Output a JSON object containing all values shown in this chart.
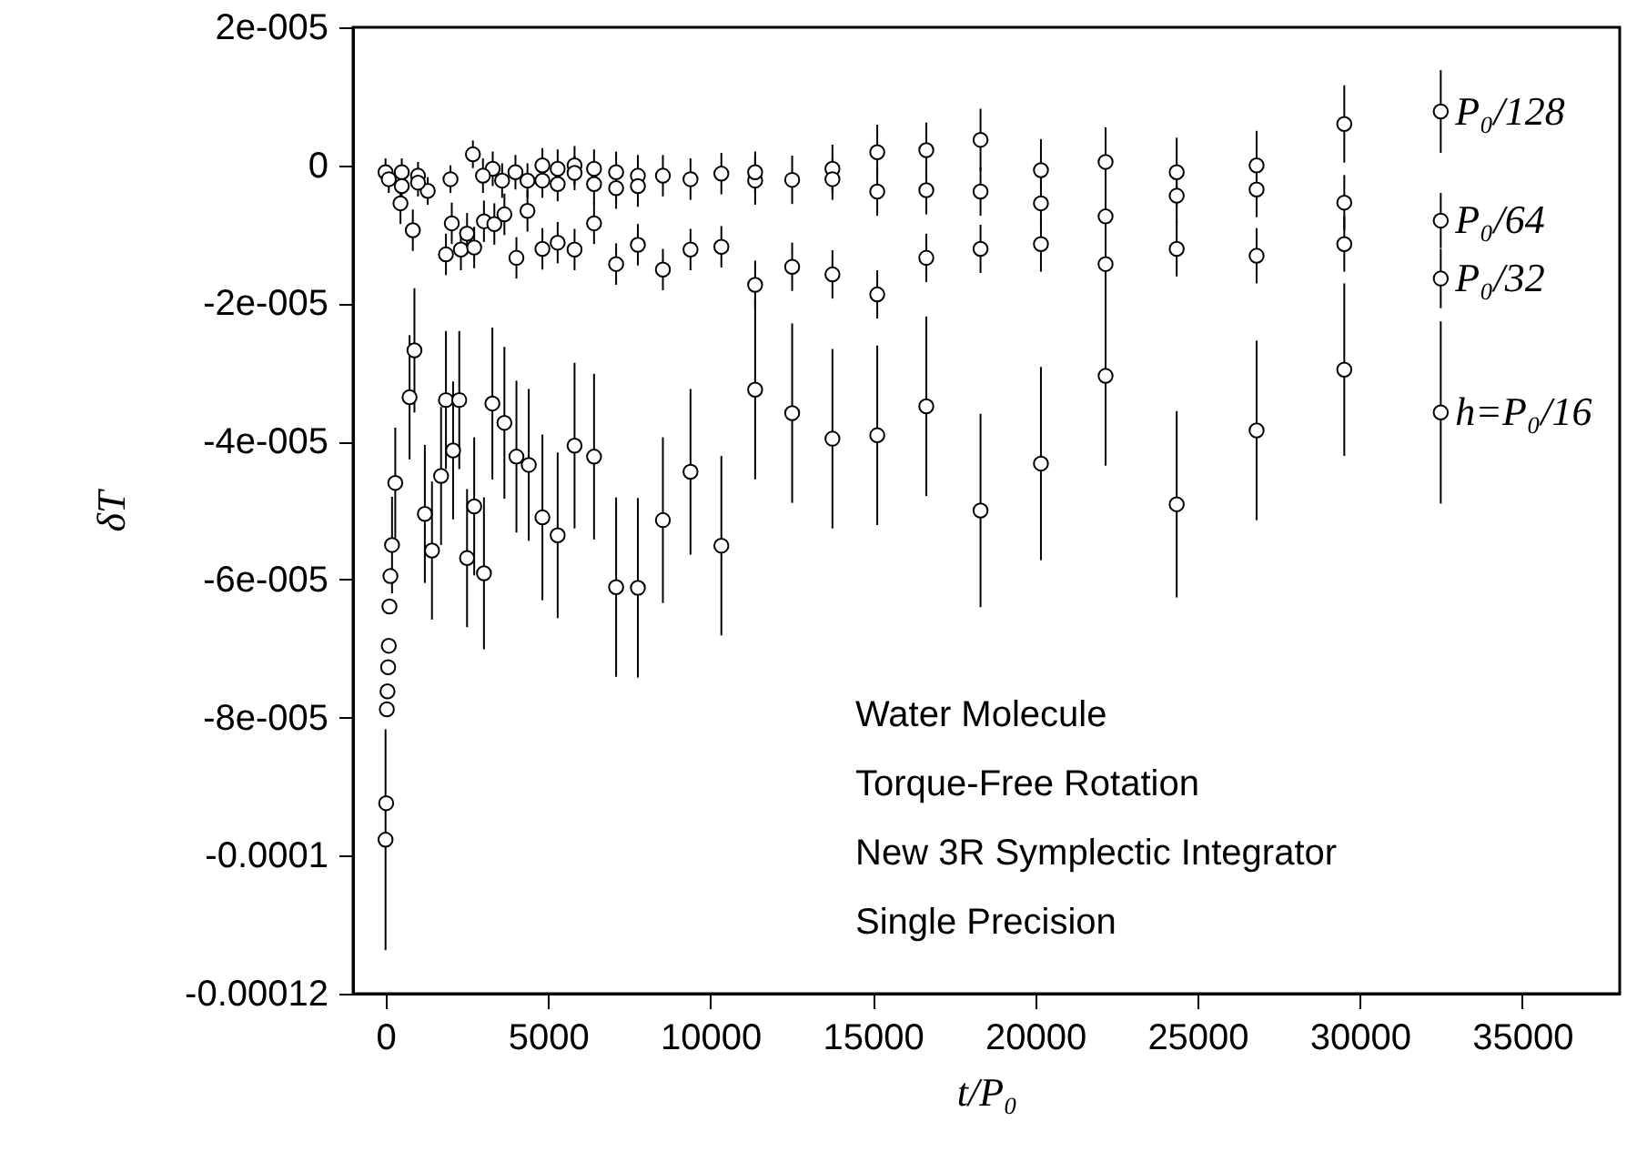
{
  "chart_data": {
    "type": "scatter",
    "xlabel": "t/P₀",
    "ylabel": "δT",
    "marker": "circle",
    "xlim": [
      -1000,
      38000
    ],
    "xticks": [
      0,
      5000,
      10000,
      15000,
      20000,
      25000,
      30000,
      35000
    ],
    "ylim": [
      -0.00012,
      2e-05
    ],
    "yticks": [
      {
        "value": 2e-05,
        "label": "2e-005"
      },
      0,
      {
        "value": -2e-05,
        "label": "-2e-005"
      },
      {
        "value": -4e-05,
        "label": "-4e-005"
      },
      {
        "value": -6e-05,
        "label": "-6e-005"
      },
      {
        "value": -8e-05,
        "label": "-8e-005"
      },
      -0.0001,
      -0.00012
    ],
    "annotations": [
      "Water Molecule",
      "Torque-Free Rotation",
      "New 3R Symplectic Integrator",
      "Single Precision"
    ],
    "series": [
      {
        "name": "P₀/128",
        "color": "#000000",
        "x": [
          0,
          500,
          1000,
          1300,
          2690,
          3300,
          4000,
          4830,
          5300,
          5820,
          6420,
          7100,
          7770,
          8540,
          9390,
          10340,
          11380,
          12520,
          13760,
          15140,
          16650,
          18320,
          20180,
          22170,
          24360,
          26820,
          29520,
          32490
        ],
        "values": [
          -1e-06,
          -1e-06,
          -1.5e-06,
          -3.7e-06,
          1.6e-06,
          -5e-07,
          -1e-06,
          0,
          -5e-07,
          0,
          -5e-07,
          -1e-06,
          -1.5e-06,
          -1.5e-06,
          -2e-06,
          -1.2e-06,
          -2.2e-06,
          -2.1e-06,
          -5e-07,
          1.9e-06,
          2.2e-06,
          3.7e-06,
          -7e-07,
          5e-07,
          -1e-06,
          0,
          6e-06,
          7.8e-06
        ],
        "errors": [
          2e-06,
          2e-06,
          2e-06,
          2e-06,
          2e-06,
          2.5e-06,
          2.5e-06,
          2.5e-06,
          2.8e-06,
          2.8e-06,
          2.8e-06,
          3e-06,
          3e-06,
          3e-06,
          3e-06,
          3e-06,
          3.5e-06,
          3.5e-06,
          3.5e-06,
          4e-06,
          4e-06,
          4.5e-06,
          4.5e-06,
          5e-06,
          5e-06,
          5e-06,
          5.6e-06,
          6e-06
        ]
      },
      {
        "name": "P₀/64",
        "color": "#000000",
        "x": [
          100,
          500,
          1000,
          2000,
          3000,
          3590,
          4370,
          4830,
          5300,
          5820,
          6420,
          7100,
          7770,
          11380,
          13760,
          15140,
          16650,
          18320,
          20180,
          22170,
          24360,
          26820,
          29520,
          32490
        ],
        "values": [
          -2e-06,
          -3e-06,
          -2.5e-06,
          -2e-06,
          -1.5e-06,
          -2.2e-06,
          -2.2e-06,
          -2.2e-06,
          -2.7e-06,
          -1.1e-06,
          -2.7e-06,
          -3.3e-06,
          -3e-06,
          -1e-06,
          -2e-06,
          -3.8e-06,
          -3.6e-06,
          -3.8e-06,
          -5.5e-06,
          -7.4e-06,
          -4.4e-06,
          -3.5e-06,
          -5.4e-06,
          -8e-06
        ],
        "errors": [
          2e-06,
          2e-06,
          2e-06,
          2e-06,
          2.5e-06,
          2.5e-06,
          2.5e-06,
          2.5e-06,
          2.5e-06,
          2.5e-06,
          3e-06,
          3e-06,
          3e-06,
          3e-06,
          3e-06,
          3.5e-06,
          3.5e-06,
          3.5e-06,
          4e-06,
          4e-06,
          4e-06,
          4e-06,
          4e-06,
          4e-06
        ]
      },
      {
        "name": "P₀/32",
        "color": "#000000",
        "x": [
          460,
          840,
          1860,
          2040,
          2320,
          2510,
          2730,
          3030,
          3350,
          3660,
          4030,
          4370,
          4830,
          5300,
          5820,
          6420,
          7100,
          7770,
          8540,
          9390,
          10340,
          11380,
          12520,
          13760,
          15140,
          16650,
          18320,
          20180,
          22170,
          24360,
          26820,
          29520,
          32490
        ],
        "values": [
          -5.5e-06,
          -9.4e-06,
          -1.29e-05,
          -8.4e-06,
          -1.22e-05,
          -9.9e-06,
          -1.19e-05,
          -8.1e-06,
          -8.5e-06,
          -7.1e-06,
          -1.34e-05,
          -6.6e-06,
          -1.21e-05,
          -1.12e-05,
          -1.22e-05,
          -8.4e-06,
          -1.43e-05,
          -1.15e-05,
          -1.51e-05,
          -1.22e-05,
          -1.18e-05,
          -1.73e-05,
          -1.47e-05,
          -1.58e-05,
          -1.87e-05,
          -1.34e-05,
          -1.21e-05,
          -1.14e-05,
          -1.43e-05,
          -1.21e-05,
          -1.31e-05,
          -1.14e-05,
          -1.64e-05
        ],
        "errors": [
          3e-06,
          3e-06,
          3e-06,
          3e-06,
          3e-06,
          3e-06,
          3e-06,
          3e-06,
          3e-06,
          3e-06,
          3e-06,
          3e-06,
          3e-06,
          3e-06,
          3e-06,
          3e-06,
          3e-06,
          3e-06,
          3e-06,
          3e-06,
          3e-06,
          3.5e-06,
          3.5e-06,
          3.5e-06,
          3.5e-06,
          3.5e-06,
          3.5e-06,
          4e-06,
          4e-06,
          4e-06,
          4e-06,
          4e-06,
          4.3e-06
        ]
      },
      {
        "name": "h=P₀/16",
        "color": "#000000",
        "x": [
          0,
          20,
          40,
          60,
          80,
          100,
          120,
          150,
          200,
          300,
          740,
          890,
          1210,
          1430,
          1710,
          1860,
          2080,
          2270,
          2510,
          2730,
          3030,
          3290,
          3660,
          4030,
          4410,
          4830,
          5300,
          5820,
          6420,
          7100,
          7770,
          8540,
          9390,
          10340,
          11380,
          12520,
          13760,
          15140,
          16650,
          18320,
          20180,
          22170,
          24360,
          26820,
          29520,
          32490
        ],
        "values": [
          -9.77e-05,
          -9.24e-05,
          -7.88e-05,
          -7.62e-05,
          -7.27e-05,
          -6.96e-05,
          -6.39e-05,
          -5.95e-05,
          -5.5e-05,
          -4.6e-05,
          -3.36e-05,
          -2.68e-05,
          -5.05e-05,
          -5.58e-05,
          -4.5e-05,
          -3.4e-05,
          -4.13e-05,
          -3.4e-05,
          -5.69e-05,
          -4.94e-05,
          -5.91e-05,
          -3.45e-05,
          -3.73e-05,
          -4.22e-05,
          -4.34e-05,
          -5.1e-05,
          -5.36e-05,
          -4.06e-05,
          -4.22e-05,
          -6.11e-05,
          -6.12e-05,
          -5.14e-05,
          -4.44e-05,
          -5.51e-05,
          -3.25e-05,
          -3.59e-05,
          -3.96e-05,
          -3.91e-05,
          -3.49e-05,
          -5e-05,
          -4.32e-05,
          -3.05e-05,
          -4.91e-05,
          -3.84e-05,
          -2.96e-05,
          -3.58e-05
        ],
        "errors": [
          1.6e-05,
          null,
          null,
          null,
          null,
          null,
          null,
          null,
          7e-06,
          8e-06,
          9e-06,
          9e-06,
          1e-05,
          1e-05,
          1e-05,
          1e-05,
          1e-05,
          1e-05,
          1e-05,
          1e-05,
          1.1e-05,
          1.1e-05,
          1.1e-05,
          1.1e-05,
          1.1e-05,
          1.2e-05,
          1.2e-05,
          1.2e-05,
          1.2e-05,
          1.3e-05,
          1.3e-05,
          1.2e-05,
          1.2e-05,
          1.3e-05,
          1.3e-05,
          1.3e-05,
          1.3e-05,
          1.3e-05,
          1.3e-05,
          1.4e-05,
          1.4e-05,
          1.3e-05,
          1.35e-05,
          1.3e-05,
          1.25e-05,
          1.32e-05
        ]
      }
    ]
  }
}
